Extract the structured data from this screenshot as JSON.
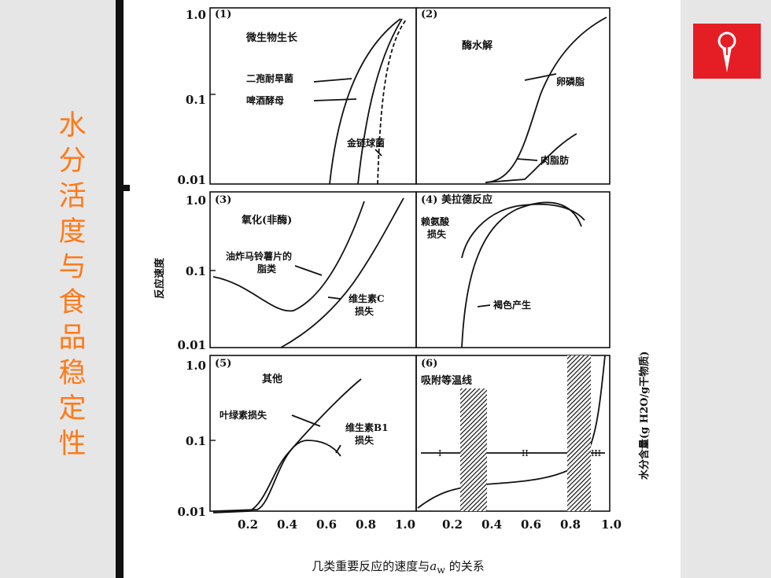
{
  "slide": {
    "side_title": [
      "水",
      "分",
      "活",
      "度",
      "与",
      "食",
      "品",
      "稳",
      "定",
      "性"
    ],
    "logo_icon": "leaf-mark-icon",
    "accent_color": "#e51e25",
    "title_color": "#ff7a1a"
  },
  "figure": {
    "caption_pre": "几类重要反应的速度与",
    "caption_sym": "a",
    "caption_sub": "w",
    "caption_post": "的关系",
    "y_axis_left": "反应速度",
    "y_axis_right": "水分含量(g H2O/g干物质)",
    "x_ticks": [
      "0.2",
      "0.4",
      "0.6",
      "0.8",
      "1.0",
      "0.2",
      "0.4",
      "0.6",
      "0.8",
      "1.0"
    ],
    "y_ticks_1": [
      "1.0",
      "0.1",
      "0.01"
    ],
    "y_ticks_3": [
      "1.0",
      "0.1",
      "0.01"
    ],
    "y_ticks_5": [
      "1.0",
      "0.1",
      "0.01"
    ],
    "panels": [
      {
        "id": "(1)",
        "title": "微生物生长",
        "labels": [
          "二孢耐旱菌",
          "啤酒酵母",
          "金链球菌"
        ]
      },
      {
        "id": "(2)",
        "title": "酶水解",
        "labels": [
          "卵磷脂",
          "肉脂肪"
        ]
      },
      {
        "id": "(3)",
        "title": "氧化(非酶)",
        "labels": [
          "油炸马铃薯片的",
          "脂类",
          "维生素C",
          "损失"
        ]
      },
      {
        "id": "(4)",
        "title": "美拉德反应",
        "labels": [
          "赖氨酸",
          "损失",
          "褐色产生"
        ]
      },
      {
        "id": "(5)",
        "title": "其他",
        "labels": [
          "叶绿素损失",
          "维生素B1",
          "损失"
        ]
      },
      {
        "id": "(6)",
        "title": "吸附等温线",
        "labels": [
          "I",
          "II",
          "III"
        ]
      }
    ]
  }
}
